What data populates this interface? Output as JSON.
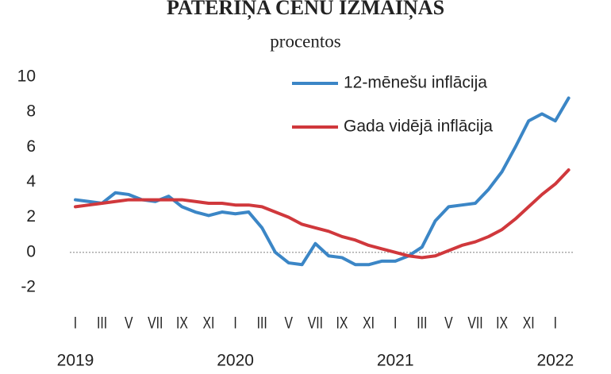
{
  "chart_data": {
    "type": "line",
    "title": "PATĒRIŅA CENU IZMAIŅAS",
    "subtitle": "procentos",
    "categories": [
      "I",
      null,
      "III",
      null,
      "V",
      null,
      "VII",
      null,
      "IX",
      null,
      "XI",
      null,
      "I",
      null,
      "III",
      null,
      "V",
      null,
      "VII",
      null,
      "IX",
      null,
      "XI",
      null,
      "I",
      null,
      "III",
      null,
      "V",
      null,
      "VII",
      null,
      "IX",
      null,
      "XI",
      null,
      "I",
      null
    ],
    "years": [
      "2019",
      "2020",
      "2021",
      "2022"
    ],
    "series": [
      {
        "name": "12-mēnešu inflācija",
        "color": "#3b86c6",
        "values": [
          3.0,
          2.9,
          2.8,
          3.4,
          3.3,
          3.0,
          2.9,
          3.2,
          2.6,
          2.3,
          2.1,
          2.3,
          2.2,
          2.3,
          1.4,
          0.0,
          -0.6,
          -0.7,
          0.5,
          -0.2,
          -0.3,
          -0.7,
          -0.7,
          -0.5,
          -0.5,
          -0.2,
          0.3,
          1.8,
          2.6,
          2.7,
          2.8,
          3.6,
          4.6,
          6.0,
          7.5,
          7.9,
          7.5,
          8.8
        ]
      },
      {
        "name": "Gada vidējā inflācija",
        "color": "#d0383c",
        "values": [
          2.6,
          2.7,
          2.8,
          2.9,
          3.0,
          3.0,
          3.0,
          3.0,
          3.0,
          2.9,
          2.8,
          2.8,
          2.7,
          2.7,
          2.6,
          2.3,
          2.0,
          1.6,
          1.4,
          1.2,
          0.9,
          0.7,
          0.4,
          0.2,
          0.0,
          -0.2,
          -0.3,
          -0.2,
          0.1,
          0.4,
          0.6,
          0.9,
          1.3,
          1.9,
          2.6,
          3.3,
          3.9,
          4.7
        ]
      }
    ],
    "ylim": [
      -2.5,
      10.5
    ],
    "yticks": [
      10,
      8,
      6,
      4,
      2,
      0,
      -2
    ],
    "zero_line": true,
    "legend": "top-right"
  }
}
